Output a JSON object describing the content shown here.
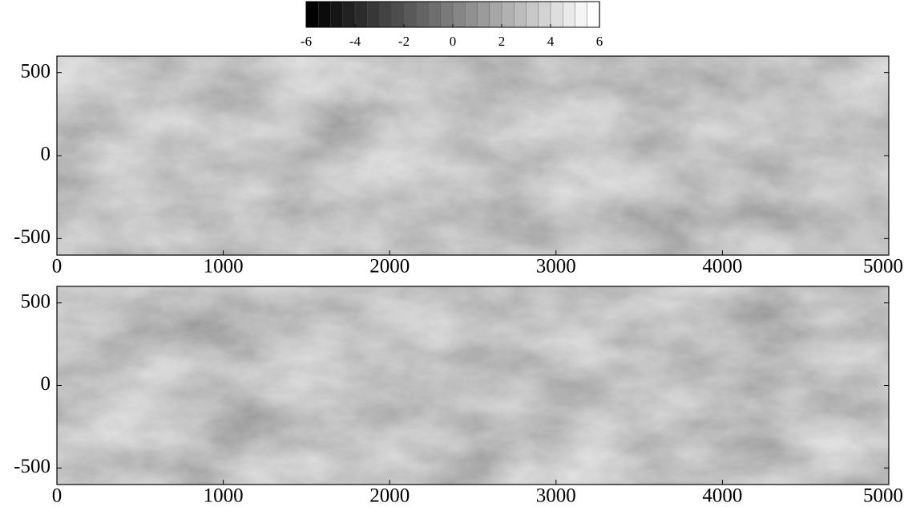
{
  "colorbar": {
    "lim": [
      -6,
      6
    ],
    "ticks": [
      -6,
      -4,
      -2,
      0,
      2,
      4,
      6
    ],
    "levels": 24,
    "colors": [
      "#000000",
      "#ffffff"
    ]
  },
  "chart_data": [
    {
      "type": "heatmap",
      "xlim": [
        0,
        5000
      ],
      "xticks": [
        0,
        1000,
        2000,
        3000,
        4000,
        5000
      ],
      "ylim": [
        -600,
        600
      ],
      "yticks": [
        -500,
        0,
        500
      ]
    },
    {
      "type": "heatmap",
      "xlim": [
        0,
        5000
      ],
      "xticks": [
        0,
        1000,
        2000,
        3000,
        4000,
        5000
      ],
      "ylim": [
        -600,
        600
      ],
      "yticks": [
        -500,
        0,
        500
      ]
    }
  ]
}
